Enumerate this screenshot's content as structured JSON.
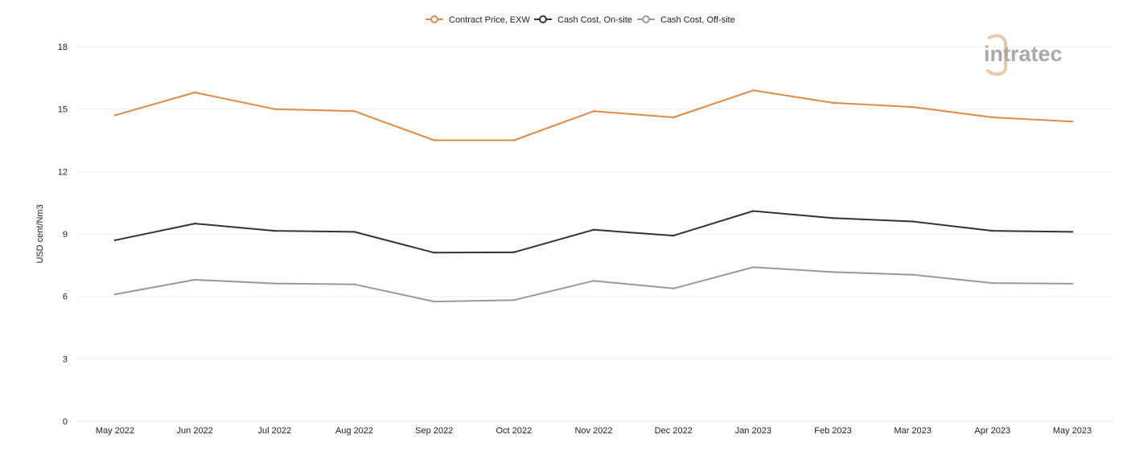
{
  "chart_data": {
    "type": "line",
    "ylabel": "USD cent/Nm3",
    "xlabel": "",
    "ylim": [
      0,
      18
    ],
    "yticks": [
      0,
      3,
      6,
      9,
      12,
      15,
      18
    ],
    "grid": true,
    "legend_position": "top-center",
    "categories": [
      "May 2022",
      "Jun 2022",
      "Jul 2022",
      "Aug 2022",
      "Sep 2022",
      "Oct 2022",
      "Nov 2022",
      "Dec 2022",
      "Jan 2023",
      "Feb 2023",
      "Mar 2023",
      "Apr 2023",
      "May 2023"
    ],
    "series": [
      {
        "name": "Contract Price, EXW",
        "color": "#e08a45",
        "values": [
          14.7,
          15.8,
          15.0,
          14.9,
          13.5,
          13.5,
          14.9,
          14.6,
          15.9,
          15.3,
          15.1,
          14.6,
          14.4
        ]
      },
      {
        "name": "Cash Cost, On-site",
        "color": "#333333",
        "values": [
          8.7,
          9.5,
          9.15,
          9.1,
          8.1,
          8.12,
          9.2,
          8.92,
          10.1,
          9.76,
          9.6,
          9.15,
          9.1
        ]
      },
      {
        "name": "Cash Cost, Off-site",
        "color": "#999999",
        "values": [
          6.1,
          6.8,
          6.62,
          6.58,
          5.75,
          5.82,
          6.75,
          6.38,
          7.4,
          7.17,
          7.04,
          6.64,
          6.61
        ]
      }
    ]
  },
  "logo": {
    "text": "intratec",
    "accent_color": "#e9c9a8",
    "text_color": "#a9a9a9"
  }
}
